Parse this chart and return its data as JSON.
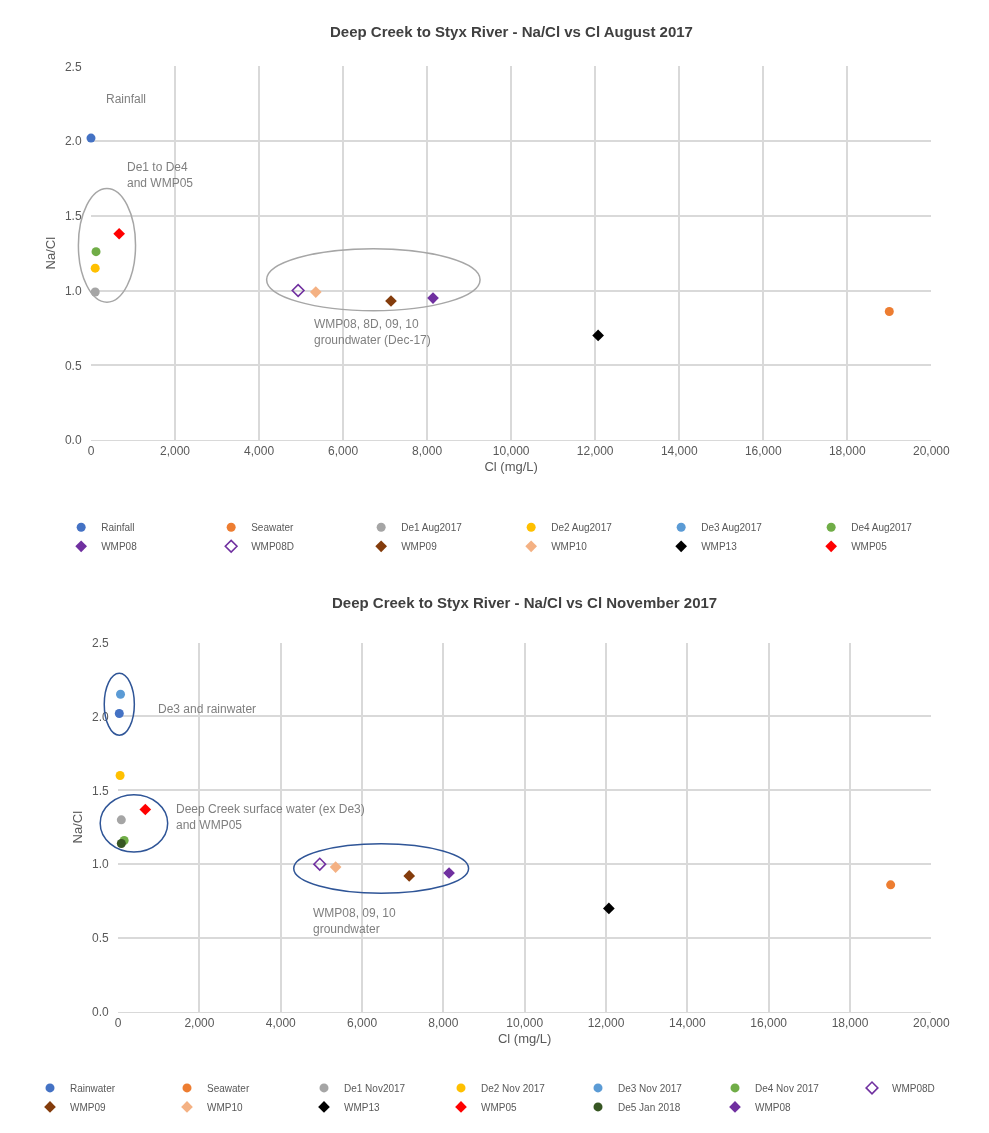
{
  "chart_data": [
    {
      "type": "scatter",
      "title": "Deep Creek to Styx River - Na/Cl vs Cl August 2017",
      "xlabel": "Cl (mg/L)",
      "ylabel": "Na/Cl",
      "xlim": [
        0,
        20000
      ],
      "ylim": [
        0,
        2.5
      ],
      "xticks": [
        0,
        {
          "value": 2000,
          "label": "2,000"
        },
        {
          "value": 4000,
          "label": "4,000"
        },
        {
          "value": 6000,
          "label": "6,000"
        },
        {
          "value": 8000,
          "label": "8,000"
        },
        {
          "value": 10000,
          "label": "10,000"
        },
        {
          "value": 12000,
          "label": "12,000"
        },
        {
          "value": 14000,
          "label": "14,000"
        },
        {
          "value": 16000,
          "label": "16,000"
        },
        {
          "value": 18000,
          "label": "18,000"
        },
        {
          "value": 20000,
          "label": "20,000"
        }
      ],
      "yticks": [
        {
          "value": 0,
          "label": "0.0"
        },
        {
          "value": 0.5,
          "label": "0.5"
        },
        {
          "value": 1,
          "label": "1.0"
        },
        {
          "value": 1.5,
          "label": "1.5"
        },
        {
          "value": 2,
          "label": "2.0"
        },
        {
          "value": 2.5,
          "label": "2.5"
        }
      ],
      "grid": true,
      "legend": "bottom",
      "annotations": [
        "Rainfall",
        "De1 to De4\nand WMP05",
        "WMP08, 8D, 09, 10\ngroundwater (Dec-17)"
      ],
      "series": [
        {
          "name": "Rainfall",
          "color": "#4472c4",
          "marker": "circle",
          "x": [
            0
          ],
          "values": [
            2.02
          ]
        },
        {
          "name": "Seawater",
          "color": "#ed7d31",
          "marker": "circle",
          "x": [
            19000
          ],
          "values": [
            0.86
          ]
        },
        {
          "name": "De1 Aug2017",
          "color": "#a5a5a5",
          "marker": "circle",
          "x": [
            100
          ],
          "values": [
            0.99
          ]
        },
        {
          "name": "De2 Aug2017",
          "color": "#ffc000",
          "marker": "circle",
          "x": [
            100
          ],
          "values": [
            1.15
          ]
        },
        {
          "name": "De3 Aug2017",
          "color": "#5b9bd5",
          "marker": "circle",
          "x": [
            null
          ],
          "values": [
            null
          ]
        },
        {
          "name": "De4 Aug2017",
          "color": "#70ad47",
          "marker": "circle",
          "x": [
            120
          ],
          "values": [
            1.26
          ]
        },
        {
          "name": "WMP08",
          "color": "#7030a0",
          "marker": "diamond",
          "x": [
            8140
          ],
          "values": [
            0.95
          ]
        },
        {
          "name": "WMP08D",
          "color": "#7030a0",
          "marker": "diamond-open",
          "x": [
            4930
          ],
          "values": [
            1.0
          ]
        },
        {
          "name": "WMP09",
          "color": "#843c0c",
          "marker": "diamond",
          "x": [
            7140
          ],
          "values": [
            0.93
          ]
        },
        {
          "name": "WMP10",
          "color": "#f4b183",
          "marker": "diamond",
          "x": [
            5350
          ],
          "values": [
            0.99
          ]
        },
        {
          "name": "WMP13",
          "color": "#000000",
          "marker": "diamond",
          "x": [
            12070
          ],
          "values": [
            0.7
          ]
        },
        {
          "name": "WMP05",
          "color": "#ff0000",
          "marker": "diamond",
          "x": [
            670
          ],
          "values": [
            1.38
          ]
        }
      ]
    },
    {
      "type": "scatter",
      "title": "Deep Creek to Styx River - Na/Cl vs Cl November 2017",
      "xlabel": "Cl (mg/L)",
      "ylabel": "Na/Cl",
      "xlim": [
        0,
        20000
      ],
      "ylim": [
        0,
        2.5
      ],
      "xticks": [
        0,
        {
          "value": 2000,
          "label": "2,000"
        },
        {
          "value": 4000,
          "label": "4,000"
        },
        {
          "value": 6000,
          "label": "6,000"
        },
        {
          "value": 8000,
          "label": "8,000"
        },
        {
          "value": 10000,
          "label": "10,000"
        },
        {
          "value": 12000,
          "label": "12,000"
        },
        {
          "value": 14000,
          "label": "14,000"
        },
        {
          "value": 16000,
          "label": "16,000"
        },
        {
          "value": 18000,
          "label": "18,000"
        },
        {
          "value": 20000,
          "label": "20,000"
        }
      ],
      "yticks": [
        {
          "value": 0,
          "label": "0.0"
        },
        {
          "value": 0.5,
          "label": "0.5"
        },
        {
          "value": 1,
          "label": "1.0"
        },
        {
          "value": 1.5,
          "label": "1.5"
        },
        {
          "value": 2,
          "label": "2.0"
        },
        {
          "value": 2.5,
          "label": "2.5"
        }
      ],
      "grid": true,
      "legend": "bottom",
      "annotations": [
        "De3 and rainwater",
        "Deep Creek surface water (ex De3)\nand WMP05",
        "WMP08, 09, 10\ngroundwater"
      ],
      "series": [
        {
          "name": "Rainwater",
          "color": "#4472c4",
          "marker": "circle",
          "x": [
            30
          ],
          "values": [
            2.02
          ]
        },
        {
          "name": "Seawater",
          "color": "#ed7d31",
          "marker": "circle",
          "x": [
            19000
          ],
          "values": [
            0.86
          ]
        },
        {
          "name": "De1 Nov2017",
          "color": "#a5a5a5",
          "marker": "circle",
          "x": [
            80
          ],
          "values": [
            1.3
          ]
        },
        {
          "name": "De2 Nov 2017",
          "color": "#ffc000",
          "marker": "circle",
          "x": [
            50
          ],
          "values": [
            1.6
          ]
        },
        {
          "name": "De3 Nov 2017",
          "color": "#5b9bd5",
          "marker": "circle",
          "x": [
            60
          ],
          "values": [
            2.15
          ]
        },
        {
          "name": "De4 Nov 2017",
          "color": "#70ad47",
          "marker": "circle",
          "x": [
            150
          ],
          "values": [
            1.16
          ]
        },
        {
          "name": "WMP08D",
          "color": "#7030a0",
          "marker": "diamond-open",
          "x": [
            4960
          ],
          "values": [
            1.0
          ]
        },
        {
          "name": "WMP09",
          "color": "#843c0c",
          "marker": "diamond",
          "x": [
            7160
          ],
          "values": [
            0.92
          ]
        },
        {
          "name": "WMP10",
          "color": "#f4b183",
          "marker": "diamond",
          "x": [
            5350
          ],
          "values": [
            0.98
          ]
        },
        {
          "name": "WMP13",
          "color": "#000000",
          "marker": "diamond",
          "x": [
            12070
          ],
          "values": [
            0.7
          ]
        },
        {
          "name": "WMP05",
          "color": "#ff0000",
          "marker": "diamond",
          "x": [
            670
          ],
          "values": [
            1.37
          ]
        },
        {
          "name": "De5 Jan 2018",
          "color": "#375623",
          "marker": "circle",
          "x": [
            80
          ],
          "values": [
            1.14
          ]
        },
        {
          "name": "WMP08",
          "color": "#7030a0",
          "marker": "diamond",
          "x": [
            8140
          ],
          "values": [
            0.94
          ]
        }
      ]
    }
  ]
}
